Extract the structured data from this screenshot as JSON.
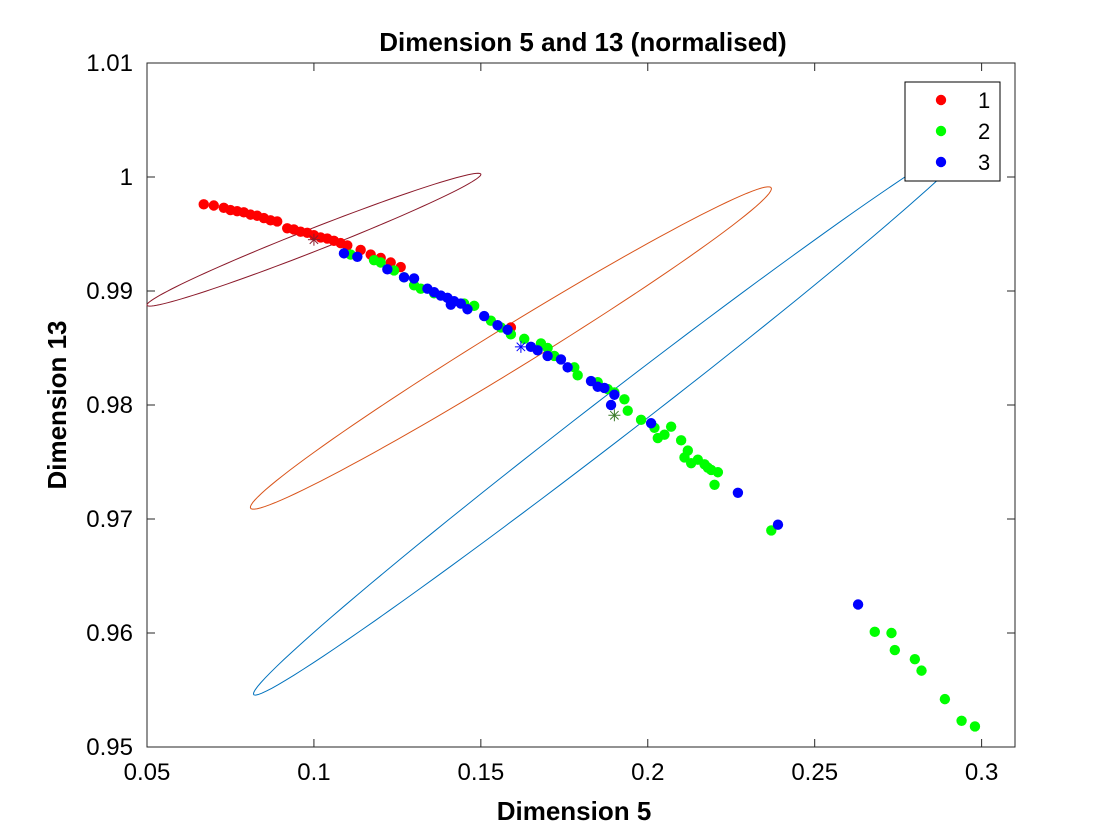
{
  "chart_data": {
    "type": "scatter",
    "title": "Dimension 5 and 13 (normalised)",
    "xlabel": "Dimension 5",
    "ylabel": "Dimension 13",
    "xlim": [
      0.05,
      0.31
    ],
    "ylim": [
      0.95,
      1.01
    ],
    "xticks": [
      0.05,
      0.1,
      0.15,
      0.2,
      0.25,
      0.3
    ],
    "xtick_labels": [
      "0.05",
      "0.1",
      "0.15",
      "0.2",
      "0.25",
      "0.3"
    ],
    "yticks": [
      0.95,
      0.96,
      0.97,
      0.98,
      0.99,
      1.0,
      1.01
    ],
    "ytick_labels": [
      "0.95",
      "0.96",
      "0.97",
      "0.98",
      "0.99",
      "1",
      "1.01"
    ],
    "grid": false,
    "legend_position": "top-right",
    "series": [
      {
        "name": "1",
        "color": "#ff0000",
        "points": [
          [
            0.067,
            0.9976
          ],
          [
            0.07,
            0.9975
          ],
          [
            0.073,
            0.9973
          ],
          [
            0.075,
            0.9971
          ],
          [
            0.077,
            0.997
          ],
          [
            0.079,
            0.9969
          ],
          [
            0.081,
            0.9967
          ],
          [
            0.083,
            0.9966
          ],
          [
            0.085,
            0.9964
          ],
          [
            0.087,
            0.9962
          ],
          [
            0.089,
            0.9961
          ],
          [
            0.092,
            0.9955
          ],
          [
            0.094,
            0.9954
          ],
          [
            0.096,
            0.9952
          ],
          [
            0.098,
            0.9951
          ],
          [
            0.1,
            0.9949
          ],
          [
            0.102,
            0.9947
          ],
          [
            0.104,
            0.9946
          ],
          [
            0.106,
            0.9944
          ],
          [
            0.108,
            0.9942
          ],
          [
            0.11,
            0.994
          ],
          [
            0.114,
            0.9936
          ],
          [
            0.117,
            0.9932
          ],
          [
            0.12,
            0.9929
          ],
          [
            0.123,
            0.9925
          ],
          [
            0.126,
            0.9921
          ],
          [
            0.159,
            0.9868
          ]
        ]
      },
      {
        "name": "2",
        "color": "#00ff00",
        "points": [
          [
            0.111,
            0.9932
          ],
          [
            0.118,
            0.9927
          ],
          [
            0.12,
            0.9925
          ],
          [
            0.124,
            0.9918
          ],
          [
            0.127,
            0.9912
          ],
          [
            0.13,
            0.9905
          ],
          [
            0.132,
            0.9902
          ],
          [
            0.136,
            0.9898
          ],
          [
            0.145,
            0.9889
          ],
          [
            0.148,
            0.9887
          ],
          [
            0.153,
            0.9874
          ],
          [
            0.156,
            0.9868
          ],
          [
            0.159,
            0.9862
          ],
          [
            0.163,
            0.9858
          ],
          [
            0.168,
            0.9854
          ],
          [
            0.17,
            0.985
          ],
          [
            0.172,
            0.9843
          ],
          [
            0.178,
            0.9833
          ],
          [
            0.179,
            0.9826
          ],
          [
            0.185,
            0.982
          ],
          [
            0.188,
            0.9814
          ],
          [
            0.19,
            0.9811
          ],
          [
            0.193,
            0.9805
          ],
          [
            0.194,
            0.9795
          ],
          [
            0.198,
            0.9787
          ],
          [
            0.202,
            0.978
          ],
          [
            0.205,
            0.9774
          ],
          [
            0.203,
            0.9771
          ],
          [
            0.207,
            0.9781
          ],
          [
            0.21,
            0.9769
          ],
          [
            0.212,
            0.976
          ],
          [
            0.211,
            0.9754
          ],
          [
            0.213,
            0.9749
          ],
          [
            0.215,
            0.9752
          ],
          [
            0.217,
            0.9748
          ],
          [
            0.219,
            0.9743
          ],
          [
            0.218,
            0.9745
          ],
          [
            0.221,
            0.9741
          ],
          [
            0.22,
            0.973
          ],
          [
            0.237,
            0.969
          ],
          [
            0.268,
            0.9601
          ],
          [
            0.273,
            0.96
          ],
          [
            0.274,
            0.9585
          ],
          [
            0.28,
            0.9577
          ],
          [
            0.282,
            0.9567
          ],
          [
            0.289,
            0.9542
          ],
          [
            0.294,
            0.9523
          ],
          [
            0.298,
            0.9518
          ]
        ]
      },
      {
        "name": "3",
        "color": "#0000ff",
        "points": [
          [
            0.109,
            0.9933
          ],
          [
            0.113,
            0.993
          ],
          [
            0.122,
            0.9919
          ],
          [
            0.127,
            0.9912
          ],
          [
            0.13,
            0.9911
          ],
          [
            0.134,
            0.9902
          ],
          [
            0.136,
            0.9899
          ],
          [
            0.138,
            0.9896
          ],
          [
            0.14,
            0.9894
          ],
          [
            0.142,
            0.9891
          ],
          [
            0.141,
            0.9888
          ],
          [
            0.144,
            0.9889
          ],
          [
            0.146,
            0.9884
          ],
          [
            0.151,
            0.9878
          ],
          [
            0.155,
            0.987
          ],
          [
            0.158,
            0.9866
          ],
          [
            0.165,
            0.9851
          ],
          [
            0.167,
            0.9848
          ],
          [
            0.17,
            0.9843
          ],
          [
            0.174,
            0.984
          ],
          [
            0.176,
            0.9833
          ],
          [
            0.183,
            0.9821
          ],
          [
            0.185,
            0.9816
          ],
          [
            0.187,
            0.9815
          ],
          [
            0.19,
            0.9809
          ],
          [
            0.189,
            0.98
          ],
          [
            0.201,
            0.9784
          ],
          [
            0.227,
            0.9723
          ],
          [
            0.239,
            0.9695
          ],
          [
            0.263,
            0.9625
          ]
        ]
      }
    ],
    "ellipses": [
      {
        "color": "#8b1a2b",
        "center": [
          0.1,
          0.9945
        ],
        "half_major": [
          0.05,
          0.0057
        ],
        "half_minor": [
          0.0012,
          0.0012
        ]
      },
      {
        "color": "#d9541a",
        "center": [
          0.159,
          0.985
        ],
        "half_major": [
          0.078,
          0.0139
        ],
        "half_minor": [
          0.0025,
          0.0026
        ]
      },
      {
        "color": "#0072bd",
        "center": [
          0.19,
          0.979
        ],
        "half_major": [
          0.108,
          0.0242
        ],
        "half_minor": [
          0.005,
          0.0035
        ]
      }
    ],
    "means": [
      {
        "color": "#8b1a2b",
        "point": [
          0.1,
          0.9945
        ]
      },
      {
        "color": "#0000ff",
        "point": [
          0.162,
          0.9851
        ]
      },
      {
        "color": "#3a7a2a",
        "point": [
          0.19,
          0.9791
        ]
      }
    ]
  }
}
